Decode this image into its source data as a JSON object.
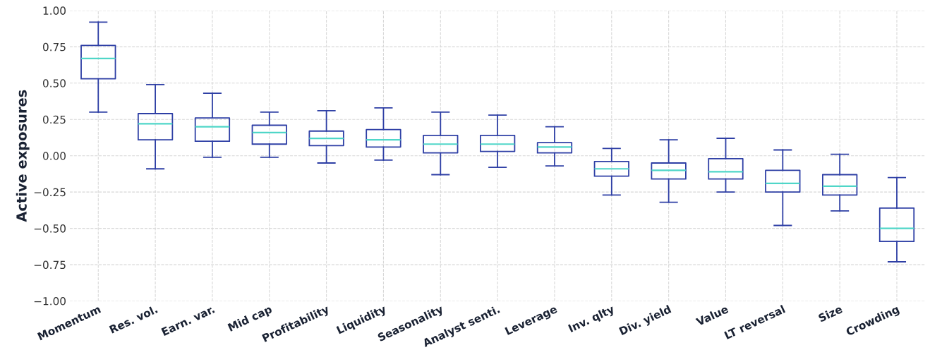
{
  "chart_data": {
    "type": "box",
    "ylabel": "Active exposures",
    "categories": [
      "Momentum",
      "Res. vol.",
      "Earn. var.",
      "Mid cap",
      "Profitability",
      "Liquidity",
      "Seasonality",
      "Analyst senti.",
      "Leverage",
      "Inv. qlty",
      "Div. yield",
      "Value",
      "LT reversal",
      "Size",
      "Crowding"
    ],
    "series": [
      {
        "color": "#2e3fa5",
        "boxes": [
          {
            "low": 0.3,
            "q1": 0.53,
            "median": 0.67,
            "q3": 0.76,
            "high": 0.92
          },
          {
            "low": -0.09,
            "q1": 0.11,
            "median": 0.22,
            "q3": 0.29,
            "high": 0.49
          },
          {
            "low": -0.01,
            "q1": 0.1,
            "median": 0.2,
            "q3": 0.26,
            "high": 0.43
          },
          {
            "low": -0.01,
            "q1": 0.08,
            "median": 0.16,
            "q3": 0.21,
            "high": 0.3
          },
          {
            "low": -0.05,
            "q1": 0.07,
            "median": 0.12,
            "q3": 0.17,
            "high": 0.31
          },
          {
            "low": -0.03,
            "q1": 0.06,
            "median": 0.11,
            "q3": 0.18,
            "high": 0.33
          },
          {
            "low": -0.13,
            "q1": 0.02,
            "median": 0.08,
            "q3": 0.14,
            "high": 0.3
          },
          {
            "low": -0.08,
            "q1": 0.03,
            "median": 0.08,
            "q3": 0.14,
            "high": 0.28
          },
          {
            "low": -0.07,
            "q1": 0.02,
            "median": 0.06,
            "q3": 0.09,
            "high": 0.2
          },
          {
            "low": -0.27,
            "q1": -0.14,
            "median": -0.09,
            "q3": -0.04,
            "high": 0.05
          },
          {
            "low": -0.32,
            "q1": -0.16,
            "median": -0.1,
            "q3": -0.05,
            "high": 0.11
          },
          {
            "low": -0.25,
            "q1": -0.16,
            "median": -0.11,
            "q3": -0.02,
            "high": 0.12
          },
          {
            "low": -0.48,
            "q1": -0.25,
            "median": -0.19,
            "q3": -0.1,
            "high": 0.04
          },
          {
            "low": -0.38,
            "q1": -0.27,
            "median": -0.21,
            "q3": -0.13,
            "high": 0.01
          },
          {
            "low": -0.73,
            "q1": -0.59,
            "median": -0.5,
            "q3": -0.36,
            "high": -0.15
          }
        ]
      }
    ],
    "ylim": [
      -1.0,
      1.0
    ],
    "yticks": [
      {
        "value": -1.0,
        "label": "−1.00"
      },
      {
        "value": -0.75,
        "label": "−0.75"
      },
      {
        "value": -0.5,
        "label": "−0.50"
      },
      {
        "value": -0.25,
        "label": "−0.25"
      },
      {
        "value": 0.0,
        "label": "0.00"
      },
      {
        "value": 0.25,
        "label": "0.25"
      },
      {
        "value": 0.5,
        "label": "0.50"
      },
      {
        "value": 0.75,
        "label": "0.75"
      },
      {
        "value": 1.0,
        "label": "1.00"
      }
    ],
    "grid": true
  }
}
